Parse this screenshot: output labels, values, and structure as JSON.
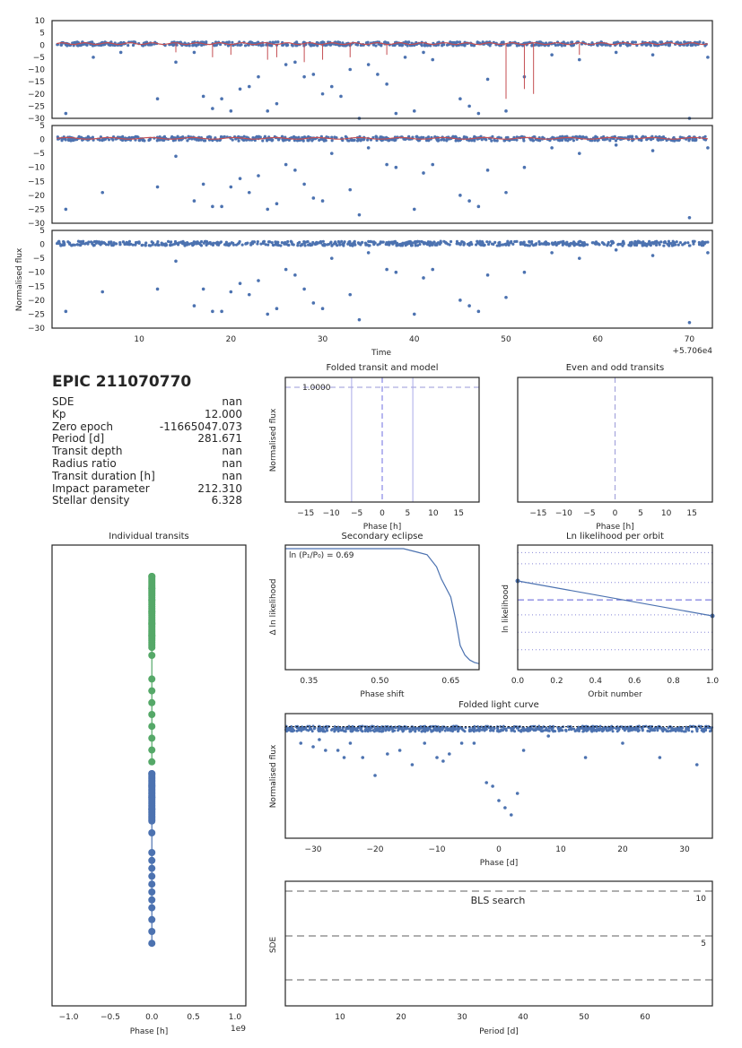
{
  "panel": {
    "epic": "EPIC 211070770",
    "rows": [
      {
        "label": "SDE",
        "value": "nan"
      },
      {
        "label": "Kp",
        "value": "12.000"
      },
      {
        "label": "Zero epoch",
        "value": "-11665047.073"
      },
      {
        "label": "Period [d]",
        "value": "281.671"
      },
      {
        "label": "Transit depth",
        "value": "nan"
      },
      {
        "label": "Radius ratio",
        "value": "nan"
      },
      {
        "label": "Transit duration [h]",
        "value": "nan"
      },
      {
        "label": "Impact parameter",
        "value": "212.310"
      },
      {
        "label": "Stellar density",
        "value": "6.328"
      }
    ]
  },
  "colors": {
    "blue": "#4c72b0",
    "red": "#c44e52",
    "green": "#55a868",
    "gray": "#7f7f7f"
  },
  "chart_data": [
    {
      "type": "scatter",
      "id": "raw",
      "xlim": [
        0.5,
        72.5
      ],
      "ylim": [
        -30,
        10
      ],
      "yticks": [
        10,
        5,
        0,
        -5,
        -10,
        -15,
        -20,
        -25,
        -30
      ],
      "x_tick_labels": [],
      "series": [
        {
          "kind": "points",
          "values": [
            [
              2,
              -28
            ],
            [
              5,
              -5
            ],
            [
              8,
              -3
            ],
            [
              12,
              -22
            ],
            [
              14,
              -7
            ],
            [
              16,
              -3
            ],
            [
              17,
              -21
            ],
            [
              18,
              -26
            ],
            [
              19,
              -22
            ],
            [
              20,
              -27
            ],
            [
              21,
              -18
            ],
            [
              22,
              -17
            ],
            [
              23,
              -13
            ],
            [
              24,
              -27
            ],
            [
              25,
              -24
            ],
            [
              26,
              -8
            ],
            [
              27,
              -7
            ],
            [
              28,
              -13
            ],
            [
              29,
              -12
            ],
            [
              30,
              -20
            ],
            [
              31,
              -17
            ],
            [
              32,
              -21
            ],
            [
              33,
              -10
            ],
            [
              34,
              -30
            ],
            [
              35,
              -8
            ],
            [
              36,
              -12
            ],
            [
              37,
              -16
            ],
            [
              38,
              -28
            ],
            [
              39,
              -5
            ],
            [
              40,
              -27
            ],
            [
              41,
              -3
            ],
            [
              42,
              -6
            ],
            [
              45,
              -22
            ],
            [
              46,
              -25
            ],
            [
              47,
              -28
            ],
            [
              48,
              -14
            ],
            [
              50,
              -27
            ],
            [
              52,
              -13
            ],
            [
              55,
              -4
            ],
            [
              58,
              -6
            ],
            [
              62,
              -3
            ],
            [
              66,
              -4
            ],
            [
              70,
              -30
            ],
            [
              72,
              -5
            ]
          ]
        },
        {
          "kind": "trend",
          "values": [
            [
              1,
              0
            ],
            [
              72,
              0
            ]
          ]
        }
      ]
    },
    {
      "type": "scatter",
      "id": "trend_removed",
      "xlim": [
        0.5,
        72.5
      ],
      "ylim": [
        -30,
        5
      ],
      "yticks": [
        5,
        0,
        -5,
        -10,
        -15,
        -20,
        -25,
        -30
      ],
      "x_tick_labels": [],
      "series": [
        {
          "kind": "points",
          "values": [
            [
              2,
              -25
            ],
            [
              6,
              -19
            ],
            [
              12,
              -17
            ],
            [
              14,
              -6
            ],
            [
              16,
              -22
            ],
            [
              17,
              -16
            ],
            [
              18,
              -24
            ],
            [
              19,
              -24
            ],
            [
              20,
              -17
            ],
            [
              21,
              -14
            ],
            [
              22,
              -19
            ],
            [
              23,
              -13
            ],
            [
              24,
              -25
            ],
            [
              25,
              -23
            ],
            [
              26,
              -9
            ],
            [
              27,
              -11
            ],
            [
              28,
              -16
            ],
            [
              29,
              -21
            ],
            [
              30,
              -22
            ],
            [
              31,
              -5
            ],
            [
              33,
              -18
            ],
            [
              34,
              -27
            ],
            [
              35,
              -3
            ],
            [
              37,
              -9
            ],
            [
              38,
              -10
            ],
            [
              40,
              -25
            ],
            [
              41,
              -12
            ],
            [
              42,
              -9
            ],
            [
              45,
              -20
            ],
            [
              46,
              -22
            ],
            [
              47,
              -24
            ],
            [
              48,
              -11
            ],
            [
              50,
              -19
            ],
            [
              52,
              -10
            ],
            [
              55,
              -3
            ],
            [
              58,
              -5
            ],
            [
              62,
              -2
            ],
            [
              66,
              -4
            ],
            [
              70,
              -28
            ],
            [
              72,
              -3
            ]
          ]
        }
      ]
    },
    {
      "type": "scatter",
      "id": "final",
      "xlim": [
        0.5,
        72.5
      ],
      "ylim": [
        -30,
        5
      ],
      "yticks": [
        5,
        0,
        -5,
        -10,
        -15,
        -20,
        -25,
        -30
      ],
      "xticks": [
        10,
        20,
        30,
        40,
        50,
        60,
        70
      ],
      "xlabel": "Time",
      "offset": "+5.706e4",
      "ylabel": "Normalised flux",
      "series": [
        {
          "kind": "points",
          "values": [
            [
              2,
              -24
            ],
            [
              6,
              -17
            ],
            [
              12,
              -16
            ],
            [
              14,
              -6
            ],
            [
              16,
              -22
            ],
            [
              17,
              -16
            ],
            [
              18,
              -24
            ],
            [
              19,
              -24
            ],
            [
              20,
              -17
            ],
            [
              21,
              -14
            ],
            [
              22,
              -18
            ],
            [
              23,
              -13
            ],
            [
              24,
              -25
            ],
            [
              25,
              -23
            ],
            [
              26,
              -9
            ],
            [
              27,
              -11
            ],
            [
              28,
              -16
            ],
            [
              29,
              -21
            ],
            [
              30,
              -23
            ],
            [
              31,
              -5
            ],
            [
              33,
              -18
            ],
            [
              34,
              -27
            ],
            [
              35,
              -3
            ],
            [
              37,
              -9
            ],
            [
              38,
              -10
            ],
            [
              40,
              -25
            ],
            [
              41,
              -12
            ],
            [
              42,
              -9
            ],
            [
              45,
              -20
            ],
            [
              46,
              -22
            ],
            [
              47,
              -24
            ],
            [
              48,
              -11
            ],
            [
              50,
              -19
            ],
            [
              52,
              -10
            ],
            [
              55,
              -3
            ],
            [
              58,
              -5
            ],
            [
              62,
              -2
            ],
            [
              66,
              -4
            ],
            [
              70,
              -28
            ],
            [
              72,
              -3
            ]
          ]
        }
      ]
    },
    {
      "type": "line",
      "id": "folded_transit",
      "title": "Folded transit and model",
      "xlim": [
        -19,
        19
      ],
      "xticks": [
        -15,
        -10,
        -5,
        0,
        5,
        10,
        15
      ],
      "xlabel": "Phase [h]",
      "ylabel": "Normalised flux",
      "annotation": "1.0000",
      "vlines": [
        -6,
        6
      ],
      "vline_dashed": 0
    },
    {
      "type": "line",
      "id": "even_odd",
      "title": "Even and odd transits",
      "xlim": [
        -19,
        19
      ],
      "xticks": [
        -15,
        -10,
        -5,
        0,
        5,
        10,
        15
      ],
      "xlabel": "Phase [h]",
      "vline_dashed": 0
    },
    {
      "type": "scatter",
      "id": "individual",
      "title": "Individual transits",
      "xlim": [
        -1.2,
        1.13
      ],
      "xticks": [
        -1.0,
        -0.5,
        0.0,
        0.5,
        1.0
      ],
      "xlabel": "Phase [h]",
      "offset": "1e9",
      "green_y": [
        0.0,
        0.03,
        0.06,
        0.09,
        0.12,
        0.15,
        0.18,
        0.2,
        0.26,
        0.29,
        0.32,
        0.35,
        0.38,
        0.41,
        0.44,
        0.47
      ],
      "blue_y": [
        0.5,
        0.53,
        0.56,
        0.59,
        0.62,
        0.65,
        0.7,
        0.72,
        0.74,
        0.76,
        0.78,
        0.8,
        0.82,
        0.84,
        0.87,
        0.9,
        0.93
      ]
    },
    {
      "type": "line",
      "id": "secondary",
      "title": "Secondary eclipse",
      "xlim": [
        0.3,
        0.71
      ],
      "xticks": [
        0.35,
        0.5,
        0.65
      ],
      "xlabel": "Phase shift",
      "ylabel": "Δ ln likelihood",
      "annotation": "ln (P₁/P₀) = 0.69",
      "values": [
        [
          0.3,
          1.0
        ],
        [
          0.55,
          1.0
        ],
        [
          0.58,
          0.97
        ],
        [
          0.6,
          0.95
        ],
        [
          0.62,
          0.85
        ],
        [
          0.63,
          0.75
        ],
        [
          0.65,
          0.6
        ],
        [
          0.66,
          0.42
        ],
        [
          0.67,
          0.2
        ],
        [
          0.68,
          0.12
        ],
        [
          0.69,
          0.08
        ],
        [
          0.7,
          0.06
        ],
        [
          0.71,
          0.05
        ]
      ]
    },
    {
      "type": "line",
      "id": "ln_likelihood",
      "title": "Ln likelihood per orbit",
      "xlim": [
        0.0,
        1.0
      ],
      "xticks": [
        0.0,
        0.2,
        0.4,
        0.6,
        0.8,
        1.0
      ],
      "xlabel": "Orbit number",
      "ylabel": "ln likelihood",
      "values": [
        [
          0.0,
          0.72
        ],
        [
          1.0,
          0.44
        ]
      ]
    },
    {
      "type": "scatter",
      "id": "folded_lc",
      "title": "Folded light curve",
      "xlim": [
        -34.5,
        34.5
      ],
      "xticks": [
        -30,
        -20,
        -10,
        0,
        10,
        20,
        30
      ],
      "xlabel": "Phase [d]",
      "ylabel": "Normalised flux",
      "ylim": [
        -30,
        2
      ],
      "series": [
        {
          "kind": "points",
          "values": [
            [
              -32,
              -4
            ],
            [
              -30,
              -5
            ],
            [
              -29,
              -3
            ],
            [
              -28,
              -6
            ],
            [
              -26,
              -6
            ],
            [
              -25,
              -8
            ],
            [
              -24,
              -4
            ],
            [
              -22,
              -8
            ],
            [
              -20,
              -13
            ],
            [
              -18,
              -7
            ],
            [
              -16,
              -6
            ],
            [
              -14,
              -10
            ],
            [
              -12,
              -4
            ],
            [
              -10,
              -8
            ],
            [
              -9,
              -9
            ],
            [
              -8,
              -7
            ],
            [
              -6,
              -4
            ],
            [
              -4,
              -4
            ],
            [
              -2,
              -15
            ],
            [
              -1,
              -16
            ],
            [
              0,
              -20
            ],
            [
              1,
              -22
            ],
            [
              2,
              -24
            ],
            [
              3,
              -18
            ],
            [
              4,
              -6
            ],
            [
              8,
              -2
            ],
            [
              14,
              -8
            ],
            [
              20,
              -4
            ],
            [
              26,
              -8
            ],
            [
              32,
              -10
            ]
          ]
        }
      ]
    },
    {
      "type": "line",
      "id": "bls",
      "title": "BLS search",
      "xlim": [
        0,
        70
      ],
      "xticks": [
        10,
        20,
        30,
        40,
        50,
        60
      ],
      "xlabel": "Period [d]",
      "ylabel": "SDE",
      "hlines": [
        10,
        5,
        0
      ],
      "labels": [
        {
          "text": "10",
          "y": 10
        },
        {
          "text": "5",
          "y": 5
        }
      ]
    }
  ]
}
